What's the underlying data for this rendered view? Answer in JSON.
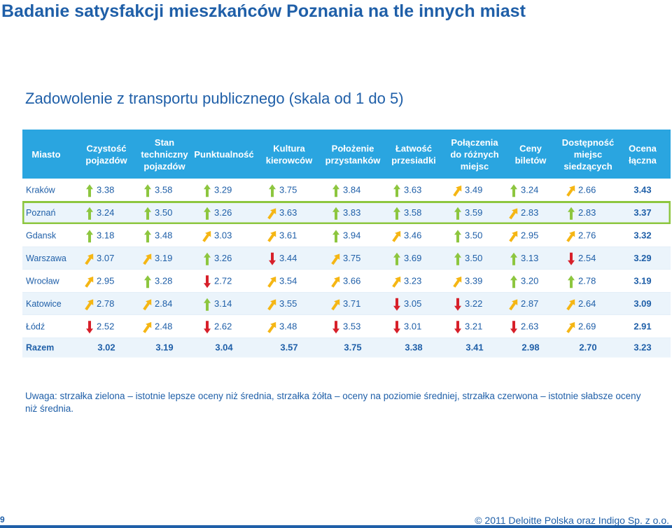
{
  "title": "Badanie satysfakcji mieszkańców Poznania na tle innych miast",
  "subtitle": "Zadowolenie z transportu publicznego (skala od 1 do 5)",
  "note": "Uwaga: strzałka zielona – istotnie lepsze oceny niż średnia, strzałka żółta – oceny na poziomie średniej, strzałka czerwona – istotnie słabsze oceny niż średnia.",
  "page_number": "9",
  "copyright": "© 2011 Deloitte Polska oraz Indigo Sp. z o.o.",
  "colors": {
    "header_bg": "#2aa5e0",
    "header_text": "#ffffff",
    "row_alt": "#ebf4fb",
    "highlight_border": "#8dc63f",
    "text": "#1f5fa8",
    "green": "#8dc63f",
    "yellow": "#f5b614",
    "red": "#d7202a"
  },
  "chart_data": {
    "type": "table",
    "columns": [
      "Miasto",
      "Czystość pojazdów",
      "Stan techniczny pojazdów",
      "Punktualność",
      "Kultura kierowców",
      "Położenie przystanków",
      "Łatwość przesiadki",
      "Połączenia do różnych miejsc",
      "Ceny biletów",
      "Dostępność miejsc siedzących",
      "Ocena łączna"
    ],
    "rows": [
      {
        "city": "Kraków",
        "highlighted": false,
        "values": [
          {
            "v": "3.38",
            "a": "green"
          },
          {
            "v": "3.58",
            "a": "green"
          },
          {
            "v": "3.29",
            "a": "green"
          },
          {
            "v": "3.75",
            "a": "green"
          },
          {
            "v": "3.84",
            "a": "green"
          },
          {
            "v": "3.63",
            "a": "green"
          },
          {
            "v": "3.49",
            "a": "yellow"
          },
          {
            "v": "3.24",
            "a": "green"
          },
          {
            "v": "2.66",
            "a": "yellow"
          }
        ],
        "total": "3.43"
      },
      {
        "city": "Poznań",
        "highlighted": true,
        "values": [
          {
            "v": "3.24",
            "a": "green"
          },
          {
            "v": "3.50",
            "a": "green"
          },
          {
            "v": "3.26",
            "a": "green"
          },
          {
            "v": "3.63",
            "a": "yellow"
          },
          {
            "v": "3.83",
            "a": "green"
          },
          {
            "v": "3.58",
            "a": "green"
          },
          {
            "v": "3.59",
            "a": "green"
          },
          {
            "v": "2.83",
            "a": "yellow"
          },
          {
            "v": "2.83",
            "a": "green"
          }
        ],
        "total": "3.37"
      },
      {
        "city": "Gdansk",
        "highlighted": false,
        "values": [
          {
            "v": "3.18",
            "a": "green"
          },
          {
            "v": "3.48",
            "a": "green"
          },
          {
            "v": "3.03",
            "a": "yellow"
          },
          {
            "v": "3.61",
            "a": "yellow"
          },
          {
            "v": "3.94",
            "a": "green"
          },
          {
            "v": "3.46",
            "a": "yellow"
          },
          {
            "v": "3.50",
            "a": "green"
          },
          {
            "v": "2.95",
            "a": "yellow"
          },
          {
            "v": "2.76",
            "a": "yellow"
          }
        ],
        "total": "3.32"
      },
      {
        "city": "Warszawa",
        "highlighted": false,
        "values": [
          {
            "v": "3.07",
            "a": "yellow"
          },
          {
            "v": "3.19",
            "a": "yellow"
          },
          {
            "v": "3.26",
            "a": "green"
          },
          {
            "v": "3.44",
            "a": "red"
          },
          {
            "v": "3.75",
            "a": "yellow"
          },
          {
            "v": "3.69",
            "a": "green"
          },
          {
            "v": "3.50",
            "a": "green"
          },
          {
            "v": "3.13",
            "a": "green"
          },
          {
            "v": "2.54",
            "a": "red"
          }
        ],
        "total": "3.29"
      },
      {
        "city": "Wrocław",
        "highlighted": false,
        "values": [
          {
            "v": "2.95",
            "a": "yellow"
          },
          {
            "v": "3.28",
            "a": "green"
          },
          {
            "v": "2.72",
            "a": "red"
          },
          {
            "v": "3.54",
            "a": "yellow"
          },
          {
            "v": "3.66",
            "a": "yellow"
          },
          {
            "v": "3.23",
            "a": "yellow"
          },
          {
            "v": "3.39",
            "a": "yellow"
          },
          {
            "v": "3.20",
            "a": "green"
          },
          {
            "v": "2.78",
            "a": "green"
          }
        ],
        "total": "3.19"
      },
      {
        "city": "Katowice",
        "highlighted": false,
        "values": [
          {
            "v": "2.78",
            "a": "yellow"
          },
          {
            "v": "2.84",
            "a": "yellow"
          },
          {
            "v": "3.14",
            "a": "green"
          },
          {
            "v": "3.55",
            "a": "yellow"
          },
          {
            "v": "3.71",
            "a": "yellow"
          },
          {
            "v": "3.05",
            "a": "red"
          },
          {
            "v": "3.22",
            "a": "red"
          },
          {
            "v": "2.87",
            "a": "yellow"
          },
          {
            "v": "2.64",
            "a": "yellow"
          }
        ],
        "total": "3.09"
      },
      {
        "city": "Łódź",
        "highlighted": false,
        "values": [
          {
            "v": "2.52",
            "a": "red"
          },
          {
            "v": "2.48",
            "a": "yellow"
          },
          {
            "v": "2.62",
            "a": "red"
          },
          {
            "v": "3.48",
            "a": "yellow"
          },
          {
            "v": "3.53",
            "a": "red"
          },
          {
            "v": "3.01",
            "a": "red"
          },
          {
            "v": "3.21",
            "a": "red"
          },
          {
            "v": "2.63",
            "a": "red"
          },
          {
            "v": "2.69",
            "a": "yellow"
          }
        ],
        "total": "2.91"
      }
    ],
    "total_row": {
      "city": "Razem",
      "values": [
        "3.02",
        "3.19",
        "3.04",
        "3.57",
        "3.75",
        "3.38",
        "3.41",
        "2.98",
        "2.70",
        "3.23"
      ]
    }
  }
}
